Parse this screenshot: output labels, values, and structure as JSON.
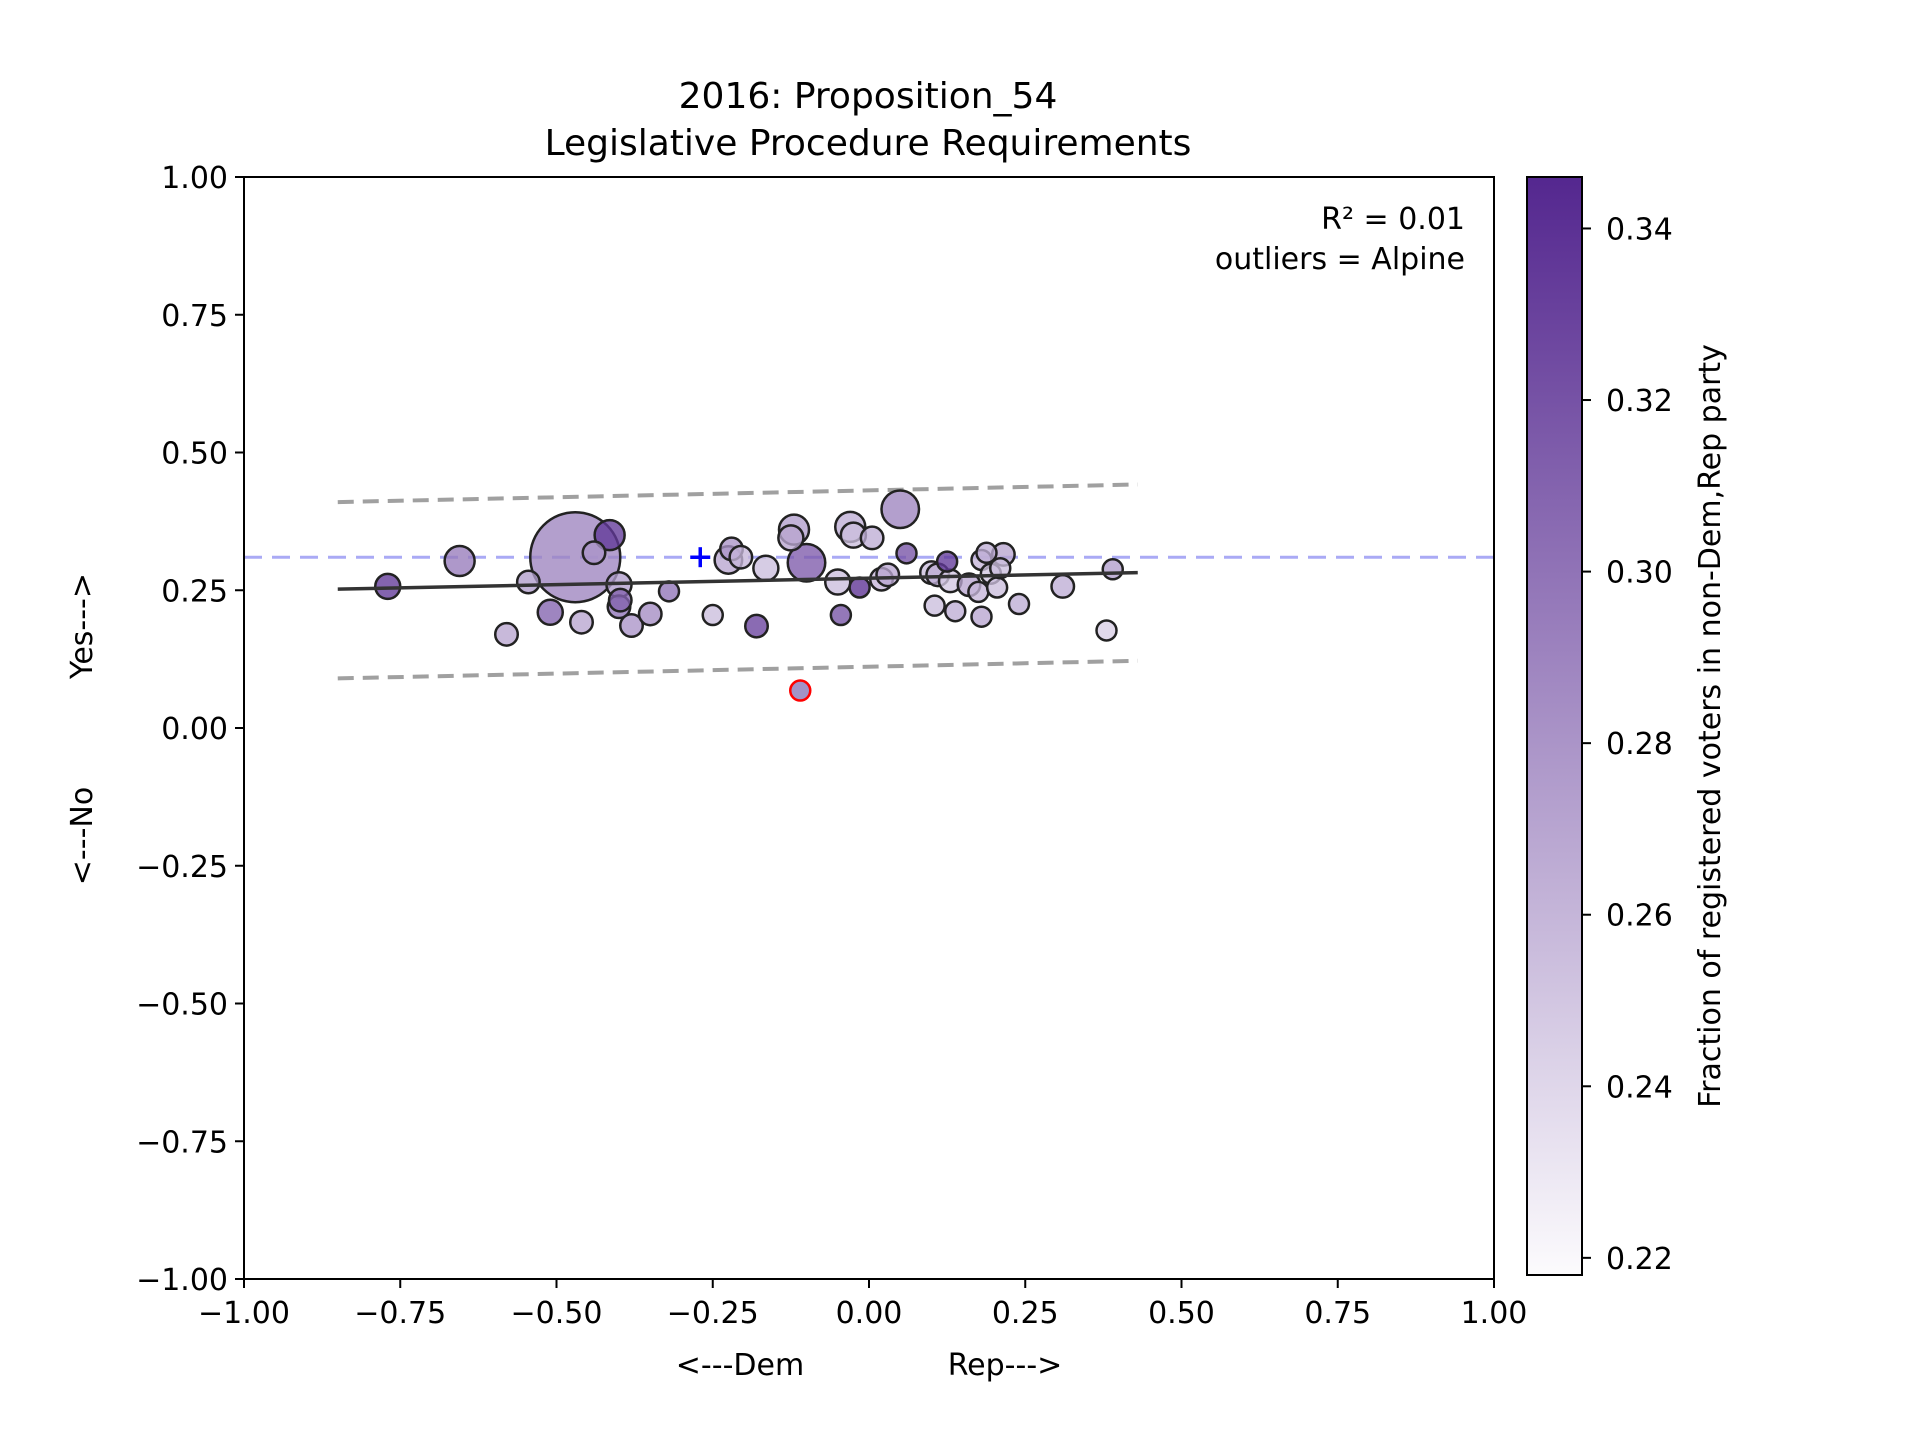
{
  "chart_data": {
    "type": "scatter",
    "title_line1": "2016: Proposition_54",
    "title_line2": "Legislative Procedure Requirements",
    "xlabel_left": "<---Dem",
    "xlabel_right": "Rep--->",
    "ylabel_bottom": "<---No",
    "ylabel_top": "Yes--->",
    "xlim": [
      -1.0,
      1.0
    ],
    "ylim": [
      -1.0,
      1.0
    ],
    "xticks": [
      "−1.00",
      "−0.75",
      "−0.50",
      "−0.25",
      "0.00",
      "0.25",
      "0.50",
      "0.75",
      "1.00"
    ],
    "yticks": [
      "−1.00",
      "−0.75",
      "−0.50",
      "−0.25",
      "0.00",
      "0.25",
      "0.50",
      "0.75",
      "1.00"
    ],
    "annotation_r2": "R² = 0.01",
    "annotation_outliers": "outliers = Alpine",
    "colorbar": {
      "label": "Fraction of registered voters in non-Dem,Rep party",
      "range": [
        0.218,
        0.346
      ],
      "ticks": [
        "0.22",
        "0.24",
        "0.26",
        "0.28",
        "0.30",
        "0.32",
        "0.34"
      ],
      "color_low": "#fcfbfd",
      "color_high": "#54278f"
    },
    "reference_line_y": 0.31,
    "reference_line_color": "#aaaaf5",
    "marker_plus": {
      "x": -0.27,
      "y": 0.31,
      "color": "#0000ff"
    },
    "fit_line": {
      "x": [
        -0.85,
        0.43
      ],
      "y": [
        0.252,
        0.282
      ]
    },
    "band_upper": {
      "x": [
        -0.85,
        0.43
      ],
      "y": [
        0.41,
        0.442
      ]
    },
    "band_lower": {
      "x": [
        -0.85,
        0.43
      ],
      "y": [
        0.09,
        0.122
      ]
    },
    "outlier": {
      "x": -0.11,
      "y": 0.068,
      "edge": "#ff0000"
    },
    "points": [
      {
        "x": -0.47,
        "y": 0.31,
        "size": 36,
        "c": 0.29
      },
      {
        "x": -0.77,
        "y": 0.257,
        "size": 10,
        "c": 0.335
      },
      {
        "x": -0.655,
        "y": 0.303,
        "size": 12,
        "c": 0.295
      },
      {
        "x": -0.545,
        "y": 0.265,
        "size": 9,
        "c": 0.275
      },
      {
        "x": -0.58,
        "y": 0.17,
        "size": 9,
        "c": 0.27
      },
      {
        "x": -0.51,
        "y": 0.21,
        "size": 10,
        "c": 0.31
      },
      {
        "x": -0.46,
        "y": 0.192,
        "size": 9,
        "c": 0.27
      },
      {
        "x": -0.44,
        "y": 0.318,
        "size": 9,
        "c": 0.28
      },
      {
        "x": -0.415,
        "y": 0.35,
        "size": 12,
        "c": 0.335
      },
      {
        "x": -0.4,
        "y": 0.26,
        "size": 10,
        "c": 0.275
      },
      {
        "x": -0.4,
        "y": 0.22,
        "size": 9,
        "c": 0.3
      },
      {
        "x": -0.398,
        "y": 0.232,
        "size": 9,
        "c": 0.31
      },
      {
        "x": -0.38,
        "y": 0.186,
        "size": 9,
        "c": 0.28
      },
      {
        "x": -0.35,
        "y": 0.207,
        "size": 9,
        "c": 0.285
      },
      {
        "x": -0.32,
        "y": 0.248,
        "size": 8,
        "c": 0.3
      },
      {
        "x": -0.25,
        "y": 0.205,
        "size": 8,
        "c": 0.255
      },
      {
        "x": -0.225,
        "y": 0.305,
        "size": 11,
        "c": 0.27
      },
      {
        "x": -0.22,
        "y": 0.325,
        "size": 9,
        "c": 0.28
      },
      {
        "x": -0.205,
        "y": 0.31,
        "size": 9,
        "c": 0.26
      },
      {
        "x": -0.18,
        "y": 0.185,
        "size": 9,
        "c": 0.33
      },
      {
        "x": -0.165,
        "y": 0.29,
        "size": 10,
        "c": 0.255
      },
      {
        "x": -0.12,
        "y": 0.36,
        "size": 12,
        "c": 0.275
      },
      {
        "x": -0.125,
        "y": 0.345,
        "size": 10,
        "c": 0.27
      },
      {
        "x": -0.1,
        "y": 0.3,
        "size": 15,
        "c": 0.315
      },
      {
        "x": -0.05,
        "y": 0.265,
        "size": 10,
        "c": 0.255
      },
      {
        "x": -0.045,
        "y": 0.205,
        "size": 8,
        "c": 0.32
      },
      {
        "x": -0.03,
        "y": 0.365,
        "size": 12,
        "c": 0.265
      },
      {
        "x": -0.025,
        "y": 0.35,
        "size": 10,
        "c": 0.255
      },
      {
        "x": -0.015,
        "y": 0.255,
        "size": 8,
        "c": 0.34
      },
      {
        "x": 0.005,
        "y": 0.345,
        "size": 9,
        "c": 0.265
      },
      {
        "x": 0.02,
        "y": 0.27,
        "size": 9,
        "c": 0.26
      },
      {
        "x": 0.03,
        "y": 0.278,
        "size": 9,
        "c": 0.27
      },
      {
        "x": 0.05,
        "y": 0.397,
        "size": 15,
        "c": 0.29
      },
      {
        "x": 0.06,
        "y": 0.317,
        "size": 8,
        "c": 0.32
      },
      {
        "x": 0.1,
        "y": 0.282,
        "size": 9,
        "c": 0.255
      },
      {
        "x": 0.105,
        "y": 0.222,
        "size": 8,
        "c": 0.255
      },
      {
        "x": 0.11,
        "y": 0.278,
        "size": 9,
        "c": 0.265
      },
      {
        "x": 0.125,
        "y": 0.302,
        "size": 8,
        "c": 0.335
      },
      {
        "x": 0.13,
        "y": 0.267,
        "size": 9,
        "c": 0.25
      },
      {
        "x": 0.138,
        "y": 0.212,
        "size": 8,
        "c": 0.265
      },
      {
        "x": 0.16,
        "y": 0.26,
        "size": 9,
        "c": 0.27
      },
      {
        "x": 0.175,
        "y": 0.247,
        "size": 8,
        "c": 0.26
      },
      {
        "x": 0.18,
        "y": 0.202,
        "size": 8,
        "c": 0.27
      },
      {
        "x": 0.18,
        "y": 0.305,
        "size": 8,
        "c": 0.26
      },
      {
        "x": 0.188,
        "y": 0.318,
        "size": 8,
        "c": 0.265
      },
      {
        "x": 0.195,
        "y": 0.28,
        "size": 8,
        "c": 0.25
      },
      {
        "x": 0.205,
        "y": 0.255,
        "size": 8,
        "c": 0.255
      },
      {
        "x": 0.21,
        "y": 0.29,
        "size": 8,
        "c": 0.255
      },
      {
        "x": 0.215,
        "y": 0.315,
        "size": 9,
        "c": 0.27
      },
      {
        "x": 0.24,
        "y": 0.225,
        "size": 8,
        "c": 0.265
      },
      {
        "x": 0.31,
        "y": 0.257,
        "size": 9,
        "c": 0.265
      },
      {
        "x": 0.38,
        "y": 0.177,
        "size": 8,
        "c": 0.245
      },
      {
        "x": 0.39,
        "y": 0.288,
        "size": 8,
        "c": 0.275
      }
    ]
  }
}
